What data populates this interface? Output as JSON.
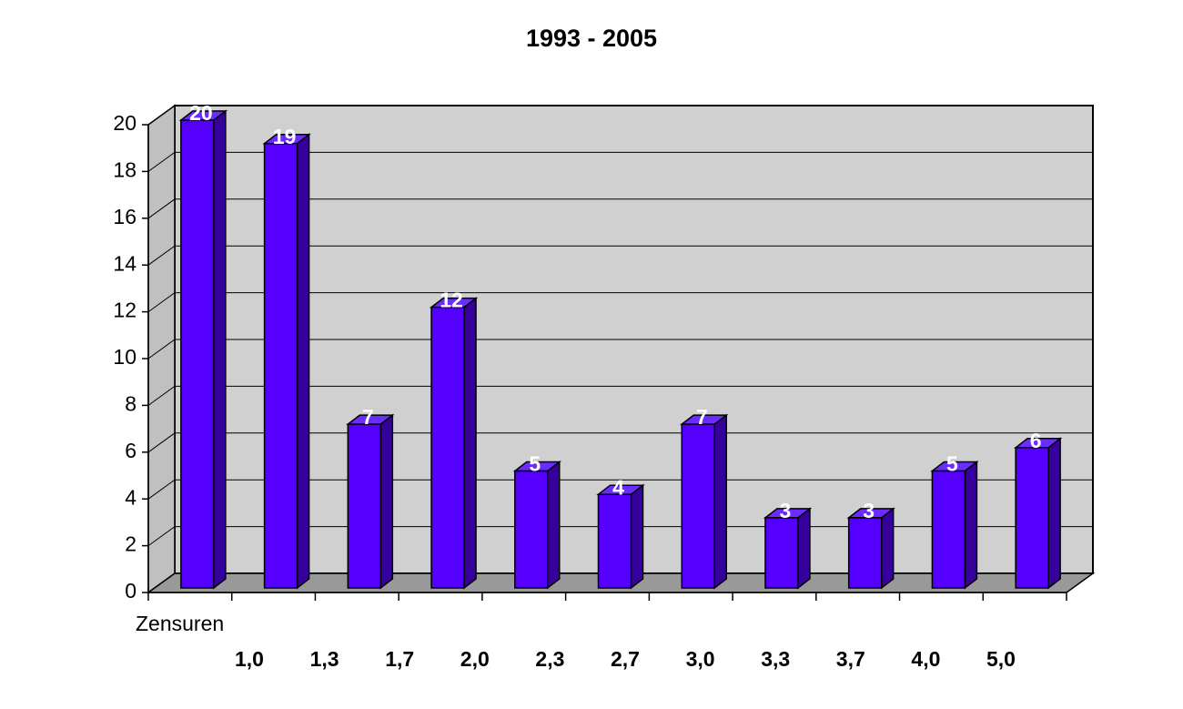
{
  "chart_data": {
    "type": "bar",
    "title": "1993 - 2005",
    "x_label": "Zensuren",
    "categories": [
      "1,0",
      "1,3",
      "1,7",
      "2,0",
      "2,3",
      "2,7",
      "3,0",
      "3,3",
      "3,7",
      "4,0",
      "5,0"
    ],
    "values": [
      20,
      19,
      7,
      12,
      5,
      4,
      7,
      3,
      3,
      5,
      6
    ],
    "color": "#5500ff",
    "ylim": [
      0,
      20
    ],
    "yticks": [
      0,
      2,
      4,
      6,
      8,
      10,
      12,
      14,
      16,
      18,
      20
    ],
    "grid": true
  }
}
